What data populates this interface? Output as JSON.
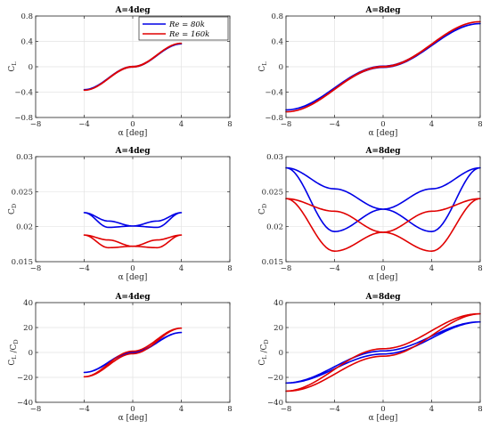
{
  "legend": {
    "entries": [
      {
        "label": "Re = 80k",
        "color": "#0000e6"
      },
      {
        "label": "Re = 160k",
        "color": "#e00000"
      }
    ],
    "placement": "top-right of first panel"
  },
  "chart_data": [
    {
      "id": "cl4",
      "type": "line",
      "title": "A=4deg",
      "xlabel": "α [deg]",
      "ylabel": "C_L",
      "xlim": [
        -8,
        8
      ],
      "ylim": [
        -0.8,
        0.8
      ],
      "xticks": [
        "-8",
        "-4",
        "0",
        "4",
        "8"
      ],
      "yticks": [
        "-0.8",
        "-0.4",
        "0",
        "0.4",
        "0.8"
      ],
      "grid": true,
      "amplitude": 4,
      "series": [
        {
          "name": "Re = 80k",
          "color": "#0000e6",
          "x": [
            -4,
            0,
            4
          ],
          "y": [
            -0.36,
            0.0,
            0.36
          ],
          "loop_width": 0.008
        },
        {
          "name": "Re = 160k",
          "color": "#e00000",
          "x": [
            -4,
            0,
            4
          ],
          "y": [
            -0.37,
            0.0,
            0.37
          ],
          "loop_width": 0.008
        }
      ]
    },
    {
      "id": "cl8",
      "type": "line",
      "title": "A=8deg",
      "xlabel": "α [deg]",
      "ylabel": "C_L",
      "xlim": [
        -8,
        8
      ],
      "ylim": [
        -0.8,
        0.8
      ],
      "xticks": [
        "-8",
        "-4",
        "0",
        "4",
        "8"
      ],
      "yticks": [
        "-0.8",
        "-0.4",
        "0",
        "0.4",
        "0.8"
      ],
      "grid": true,
      "amplitude": 8,
      "series": [
        {
          "name": "Re = 80k",
          "color": "#0000e6",
          "x": [
            -8,
            0,
            8
          ],
          "y": [
            -0.68,
            0.0,
            0.68
          ],
          "loop_width": 0.02
        },
        {
          "name": "Re = 160k",
          "color": "#e00000",
          "x": [
            -8,
            0,
            8
          ],
          "y": [
            -0.71,
            0.0,
            0.71
          ],
          "loop_width": 0.01
        }
      ]
    },
    {
      "id": "cd4",
      "type": "line",
      "title": "A=4deg",
      "xlabel": "α [deg]",
      "ylabel": "C_D",
      "xlim": [
        -8,
        8
      ],
      "ylim": [
        0.015,
        0.03
      ],
      "xticks": [
        "-8",
        "-4",
        "0",
        "4",
        "8"
      ],
      "yticks": [
        "0.015",
        "0.02",
        "0.025",
        "0.03"
      ],
      "grid": true,
      "amplitude": 4,
      "series": [
        {
          "name": "Re = 80k",
          "color": "#0000e6",
          "x": [
            -4,
            -2,
            0,
            2,
            4
          ],
          "y": [
            0.022,
            0.0208,
            0.0201,
            0.0199,
            0.022
          ],
          "y_alt": [
            0.022,
            0.0199,
            0.0201,
            0.0208,
            0.022
          ]
        },
        {
          "name": "Re = 160k",
          "color": "#e00000",
          "x": [
            -4,
            -2,
            0,
            2,
            4
          ],
          "y": [
            0.0188,
            0.0181,
            0.0172,
            0.017,
            0.0188
          ],
          "y_alt": [
            0.0188,
            0.017,
            0.0172,
            0.0181,
            0.0188
          ]
        }
      ]
    },
    {
      "id": "cd8",
      "type": "line",
      "title": "A=8deg",
      "xlabel": "α [deg]",
      "ylabel": "C_D",
      "xlim": [
        -8,
        8
      ],
      "ylim": [
        0.015,
        0.03
      ],
      "xticks": [
        "-8",
        "-4",
        "0",
        "4",
        "8"
      ],
      "yticks": [
        "0.015",
        "0.02",
        "0.025",
        "0.03"
      ],
      "grid": true,
      "amplitude": 8,
      "series": [
        {
          "name": "Re = 80k",
          "color": "#0000e6",
          "x": [
            -8,
            -4,
            0,
            4,
            8
          ],
          "y": [
            0.0284,
            0.0254,
            0.0225,
            0.0193,
            0.0284
          ],
          "y_alt": [
            0.0284,
            0.0193,
            0.0225,
            0.0254,
            0.0284
          ]
        },
        {
          "name": "Re = 160k",
          "color": "#e00000",
          "x": [
            -8,
            -4,
            0,
            4,
            8
          ],
          "y": [
            0.024,
            0.0222,
            0.0192,
            0.0165,
            0.024
          ],
          "y_alt": [
            0.024,
            0.0165,
            0.0192,
            0.0222,
            0.024
          ]
        }
      ]
    },
    {
      "id": "ld4",
      "type": "line",
      "title": "A=4deg",
      "xlabel": "α [deg]",
      "ylabel": "C_L /C_D",
      "xlim": [
        -8,
        8
      ],
      "ylim": [
        -40,
        40
      ],
      "xticks": [
        "-8",
        "-4",
        "0",
        "4",
        "8"
      ],
      "yticks": [
        "-40",
        "-20",
        "0",
        "20",
        "40"
      ],
      "grid": true,
      "amplitude": 4,
      "series": [
        {
          "name": "Re = 80k",
          "color": "#0000e6",
          "x": [
            -4,
            0,
            4
          ],
          "y": [
            -16,
            0,
            16
          ],
          "loop_width": 0.6
        },
        {
          "name": "Re = 160k",
          "color": "#e00000",
          "x": [
            -4,
            0,
            4
          ],
          "y": [
            -19.5,
            0,
            19.5
          ],
          "loop_width": 2.0
        }
      ]
    },
    {
      "id": "ld8",
      "type": "line",
      "title": "A=8deg",
      "xlabel": "α [deg]",
      "ylabel": "C_L /C_D",
      "xlim": [
        -8,
        8
      ],
      "ylim": [
        -40,
        40
      ],
      "xticks": [
        "-8",
        "-4",
        "0",
        "4",
        "8"
      ],
      "yticks": [
        "-40",
        "-20",
        "0",
        "20",
        "40"
      ],
      "grid": true,
      "amplitude": 8,
      "series": [
        {
          "name": "Re = 80k",
          "color": "#0000e6",
          "x": [
            -8,
            0,
            8
          ],
          "y": [
            -24.5,
            0,
            24.5
          ],
          "loop_width": 2.5
        },
        {
          "name": "Re = 160k",
          "color": "#e00000",
          "x": [
            -8,
            0,
            8
          ],
          "y": [
            -31,
            0,
            31
          ],
          "loop_width": 6.0
        }
      ]
    }
  ]
}
